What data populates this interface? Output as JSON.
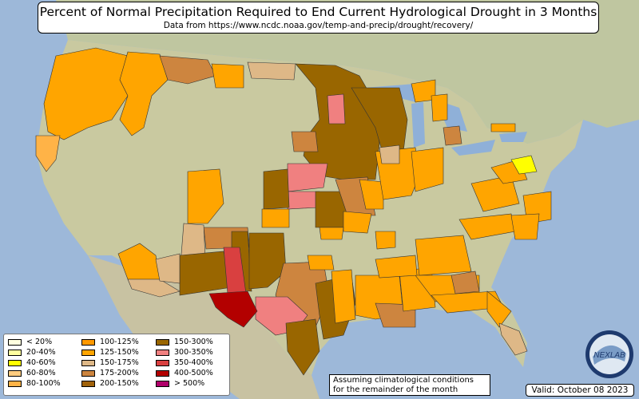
{
  "title": "Percent of Normal Precipitation Required to End Current Hydrological Drought in 3 Months",
  "subtitle": "Data from https://www.ncdc.noaa.gov/temp-and-precip/drought/recovery/",
  "legend": [
    {
      "label": "< 20%",
      "color": "#ffffe0"
    },
    {
      "label": "20-40%",
      "color": "#ffffa0"
    },
    {
      "label": "40-60%",
      "color": "#ffff00"
    },
    {
      "label": "60-80%",
      "color": "#ffcc80"
    },
    {
      "label": "80-100%",
      "color": "#ffb347"
    },
    {
      "label": "100-125%",
      "color": "#ff9900"
    },
    {
      "label": "125-150%",
      "color": "#ffa500"
    },
    {
      "label": "150-175%",
      "color": "#deb887"
    },
    {
      "label": "175-200%",
      "color": "#cd853f"
    },
    {
      "label": "200-150%",
      "color": "#a0620a"
    },
    {
      "label": "150-300%",
      "color": "#996600"
    },
    {
      "label": "300-350%",
      "color": "#f08080"
    },
    {
      "label": "350-400%",
      "color": "#d94040"
    },
    {
      "label": "400-500%",
      "color": "#b30000"
    },
    {
      "label": "> 500%",
      "color": "#b0006a"
    }
  ],
  "note": {
    "line1": "Assuming climatological conditions",
    "line2": "for the remainder of the month"
  },
  "valid": "Valid: October 08 2023",
  "logo_text": "NEXLAB",
  "colors": {
    "ocean": "#9db8d9",
    "land": "#c9c9a0",
    "canada": "#bfc6a0",
    "mexico": "#c8c2a2"
  }
}
